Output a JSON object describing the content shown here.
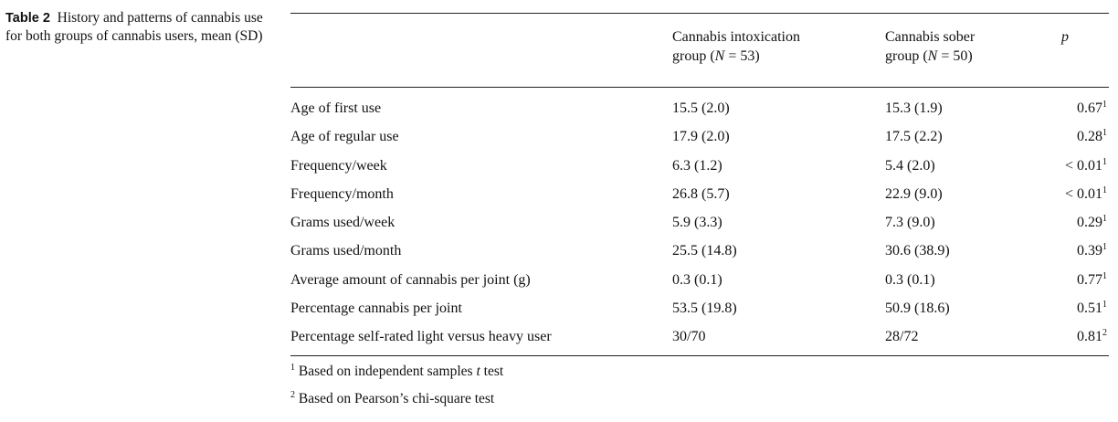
{
  "caption": {
    "label": "Table 2",
    "text": "History and patterns of cannabis use for both groups of cannabis users, mean (SD)"
  },
  "header": {
    "group1_line1": "Cannabis intoxication",
    "group1_line2_pre": "group (",
    "group1_n_symbol": "N",
    "group1_n_value": " = 53)",
    "group2_line1": "Cannabis sober",
    "group2_line2_pre": "group (",
    "group2_n_symbol": "N",
    "group2_n_value": " = 50)",
    "p_label": "p"
  },
  "rows": [
    {
      "label": "Age of first use",
      "g1": "15.5 (2.0)",
      "g2": "15.3 (1.9)",
      "p": "0.67",
      "note": "1"
    },
    {
      "label": "Age of regular use",
      "g1": "17.9 (2.0)",
      "g2": "17.5 (2.2)",
      "p": "0.28",
      "note": "1"
    },
    {
      "label": "Frequency/week",
      "g1": "6.3 (1.2)",
      "g2": "5.4 (2.0)",
      "p": "< 0.01",
      "note": "1"
    },
    {
      "label": "Frequency/month",
      "g1": "26.8 (5.7)",
      "g2": "22.9 (9.0)",
      "p": "< 0.01",
      "note": "1"
    },
    {
      "label": "Grams used/week",
      "g1": "5.9 (3.3)",
      "g2": "7.3 (9.0)",
      "p": "0.29",
      "note": "1"
    },
    {
      "label": "Grams used/month",
      "g1": "25.5 (14.8)",
      "g2": "30.6 (38.9)",
      "p": "0.39",
      "note": "1"
    },
    {
      "label": "Average amount of cannabis per joint (g)",
      "g1": "0.3 (0.1)",
      "g2": "0.3 (0.1)",
      "p": "0.77",
      "note": "1"
    },
    {
      "label": "Percentage cannabis per joint",
      "g1": "53.5 (19.8)",
      "g2": "50.9 (18.6)",
      "p": "0.51",
      "note": "1"
    },
    {
      "label": "Percentage self-rated light versus heavy user",
      "g1": "30/70",
      "g2": "28/72",
      "p": "0.81",
      "note": "2"
    }
  ],
  "footnotes": [
    {
      "num": "1",
      "pre": "Based on independent samples ",
      "italic": "t",
      "post": " test"
    },
    {
      "num": "2",
      "pre": "Based on Pearson’s chi-square test",
      "italic": "",
      "post": ""
    }
  ]
}
